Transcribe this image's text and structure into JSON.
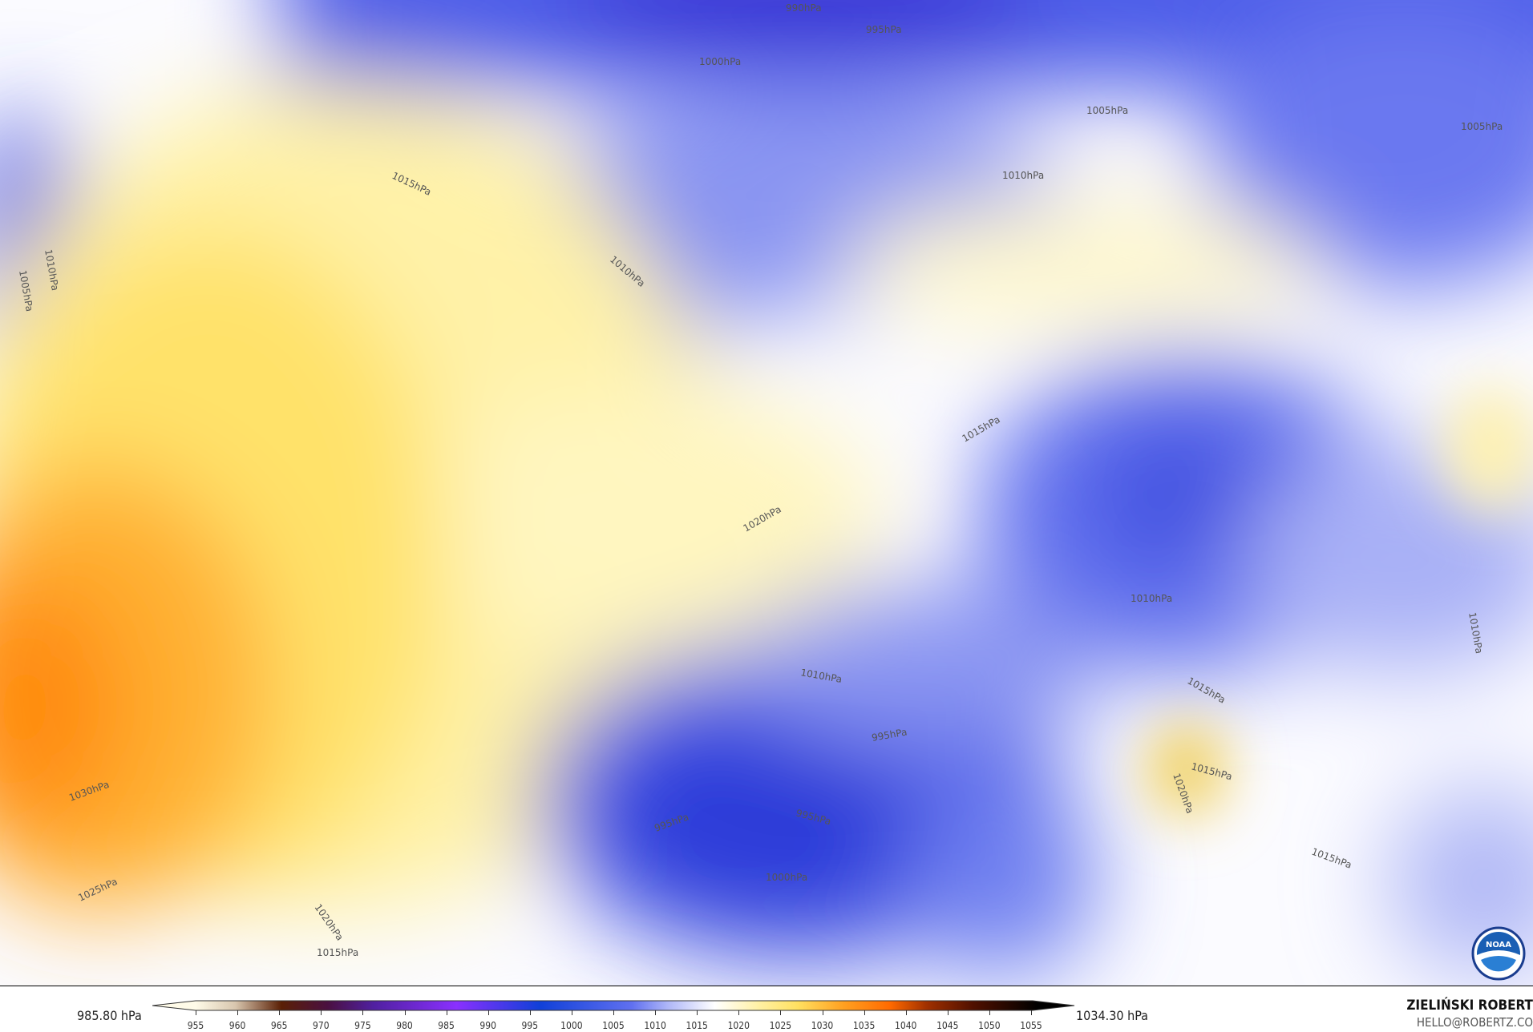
{
  "map": {
    "contour_labels": [
      {
        "text": "990hPa"
      },
      {
        "text": "995hPa"
      },
      {
        "text": "1000hPa"
      },
      {
        "text": "1005hPa"
      },
      {
        "text": "1005hPa"
      },
      {
        "text": "1010hPa"
      },
      {
        "text": "1015hPa"
      },
      {
        "text": "1010hPa"
      },
      {
        "text": "1005hPa"
      },
      {
        "text": "1010hPa"
      },
      {
        "text": "1015hPa"
      },
      {
        "text": "1020hPa"
      },
      {
        "text": "1010hPa"
      },
      {
        "text": "1010hPa"
      },
      {
        "text": "1010hPa"
      },
      {
        "text": "1015hPa"
      },
      {
        "text": "995hPa"
      },
      {
        "text": "1015hPa"
      },
      {
        "text": "1020hPa"
      },
      {
        "text": "995hPa"
      },
      {
        "text": "995hPa"
      },
      {
        "text": "1000hPa"
      },
      {
        "text": "1015hPa"
      },
      {
        "text": "1030hPa"
      },
      {
        "text": "1025hPa"
      },
      {
        "text": "1020hPa"
      },
      {
        "text": "1015hPa"
      }
    ],
    "logo": "NOAA"
  },
  "legend": {
    "min_label": "985.80 hPa",
    "max_label": "1034.30 hPa",
    "ticks": [
      "955",
      "960",
      "965",
      "970",
      "975",
      "980",
      "985",
      "990",
      "995",
      "1000",
      "1005",
      "1010",
      "1015",
      "1020",
      "1025",
      "1030",
      "1035",
      "1040",
      "1045",
      "1050",
      "1055"
    ],
    "colors": {
      "low": "#1040d8",
      "neutral": "#ffffff",
      "high": "#ff6a00"
    }
  },
  "credits": {
    "author": "ZIELIŃSKI ROBERT",
    "email": "HELLO@ROBERTZ.CO"
  }
}
